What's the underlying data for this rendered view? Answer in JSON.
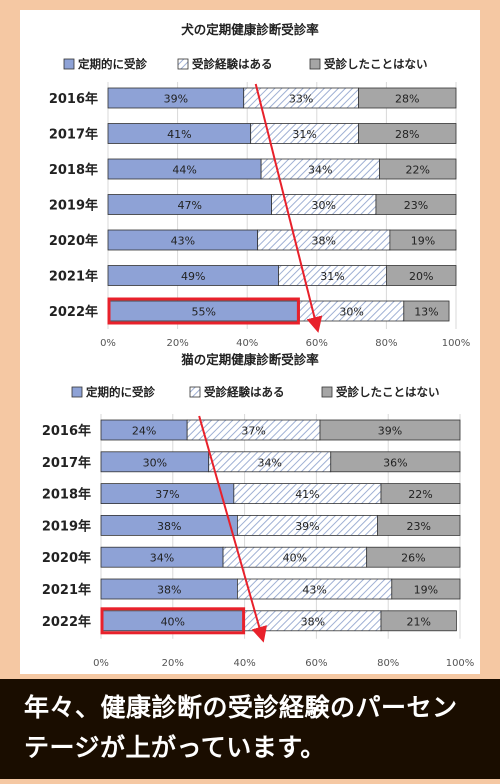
{
  "chart_data": [
    {
      "type": "bar",
      "orientation": "horizontal",
      "stacked": true,
      "title": "犬の定期健康診断受診率",
      "categories": [
        "2016年",
        "2017年",
        "2018年",
        "2019年",
        "2020年",
        "2021年",
        "2022年"
      ],
      "series": [
        {
          "name": "定期的に受診",
          "values": [
            39,
            41,
            44,
            47,
            43,
            49,
            55
          ],
          "color": "#8ea2d6"
        },
        {
          "name": "受診経験はある",
          "values": [
            33,
            31,
            34,
            30,
            38,
            31,
            30
          ],
          "color": "#d4dded"
        },
        {
          "name": "受診したことはない",
          "values": [
            28,
            28,
            22,
            23,
            19,
            20,
            13
          ],
          "color": "#a6a6a6"
        }
      ],
      "x_ticks": [
        "0%",
        "20%",
        "40%",
        "60%",
        "80%",
        "100%"
      ],
      "xlim": [
        0,
        100
      ],
      "legend": "top",
      "highlight_category": "2022年"
    },
    {
      "type": "bar",
      "orientation": "horizontal",
      "stacked": true,
      "title": "猫の定期健康診断受診率",
      "categories": [
        "2016年",
        "2017年",
        "2018年",
        "2019年",
        "2020年",
        "2021年",
        "2022年"
      ],
      "series": [
        {
          "name": "定期的に受診",
          "values": [
            24,
            30,
            37,
            38,
            34,
            38,
            40
          ],
          "color": "#8ea2d6"
        },
        {
          "name": "受診経験はある",
          "values": [
            37,
            34,
            41,
            39,
            40,
            43,
            38
          ],
          "color": "#d4dded"
        },
        {
          "name": "受診したことはない",
          "values": [
            39,
            36,
            22,
            23,
            26,
            19,
            21
          ],
          "color": "#a6a6a6"
        }
      ],
      "x_ticks": [
        "0%",
        "20%",
        "40%",
        "60%",
        "80%",
        "100%"
      ],
      "xlim": [
        0,
        100
      ],
      "legend": "top",
      "highlight_category": "2022年"
    }
  ],
  "caption": "年々、健康診断の受診経験のパーセンテージが上がっています。",
  "colors": {
    "highlight": "#e8212b",
    "arrow": "#e8212b",
    "background": "#f5c8a3",
    "caption_bg": "#1a0d00"
  }
}
